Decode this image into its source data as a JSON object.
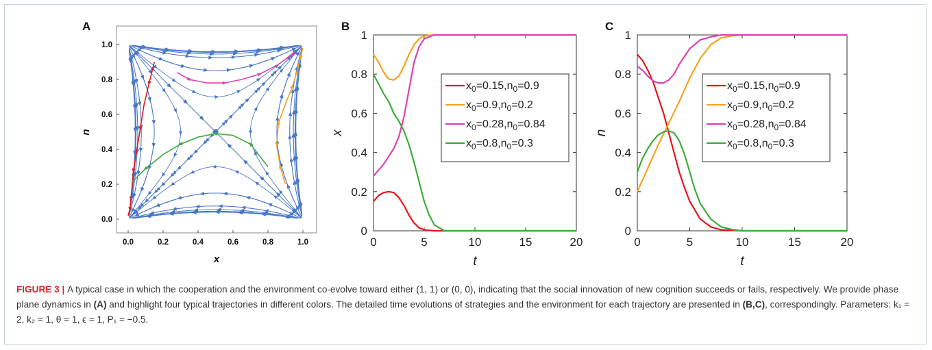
{
  "figure": {
    "label": "FIGURE 3",
    "separator": " | ",
    "caption_part1": "A typical case in which the cooperation and the environment co-evolve toward either (1, 1) or (0, 0), indicating that the social innovation of new cognition succeeds or fails, respectively. We provide phase plane dynamics in ",
    "ref_a": "(A)",
    "caption_part2": " and highlight four typical trajectories in different colors. The detailed time evolutions of strategies and the environment for each trajectory are presented in ",
    "ref_bc": "(B,C)",
    "caption_part3": ", correspondingly. Parameters: ",
    "parameters": "k₁ = 2, k₂ = 1, θ = 1, ϵ = 1, P₁ = −0.5."
  },
  "colors": {
    "red": "#e8141c",
    "orange": "#f7a21b",
    "magenta": "#dd3fb6",
    "green": "#3cab3a",
    "stream": "#4a78c8"
  },
  "chart_data": [
    {
      "panel": "A",
      "type": "streamplot",
      "xlabel": "x",
      "ylabel": "n",
      "xlim": [
        0,
        1
      ],
      "ylim": [
        0,
        1
      ],
      "xticks": [
        "0.0",
        "0.2",
        "0.4",
        "0.6",
        "0.8",
        "1.0"
      ],
      "yticks": [
        "0.0",
        "0.2",
        "0.4",
        "0.6",
        "0.8",
        "1.0"
      ],
      "highlighted_trajectories": [
        {
          "color": "red",
          "x": [
            0.15,
            0.12,
            0.09,
            0.07,
            0.05,
            0.03,
            0.02,
            0.01,
            0.0
          ],
          "n": [
            0.9,
            0.78,
            0.65,
            0.52,
            0.4,
            0.28,
            0.16,
            0.06,
            0.02
          ]
        },
        {
          "color": "orange",
          "x": [
            0.9,
            0.87,
            0.85,
            0.86,
            0.9,
            0.94,
            0.97,
            0.99,
            1.0
          ],
          "n": [
            0.2,
            0.3,
            0.42,
            0.55,
            0.66,
            0.76,
            0.86,
            0.94,
            0.98
          ]
        },
        {
          "color": "magenta",
          "x": [
            0.28,
            0.35,
            0.45,
            0.55,
            0.65,
            0.75,
            0.85,
            0.95
          ],
          "n": [
            0.84,
            0.8,
            0.78,
            0.78,
            0.8,
            0.83,
            0.88,
            0.95
          ]
        },
        {
          "color": "green",
          "x": [
            0.8,
            0.7,
            0.6,
            0.5,
            0.4,
            0.3,
            0.2,
            0.1,
            0.02
          ],
          "n": [
            0.3,
            0.43,
            0.48,
            0.49,
            0.47,
            0.43,
            0.37,
            0.29,
            0.21
          ]
        }
      ]
    },
    {
      "panel": "B",
      "type": "line",
      "xlabel": "t",
      "ylabel": "x",
      "xlim": [
        0,
        20
      ],
      "ylim": [
        0,
        1
      ],
      "xticks": [
        "0",
        "5",
        "10",
        "15",
        "20"
      ],
      "yticks": [
        "0",
        "0.2",
        "0.4",
        "0.6",
        "0.8",
        "1"
      ],
      "legend": [
        "x0=0.15,n0=0.9",
        "x0=0.9,n0=0.2",
        "x0=0.28,n0=0.84",
        "x0=0.8,n0=0.3"
      ],
      "series": [
        {
          "name": "x0=0.15,n0=0.9",
          "color": "red",
          "t": [
            0,
            0.5,
            1,
            1.5,
            2,
            2.5,
            3,
            3.5,
            4,
            4.5,
            5,
            6,
            7,
            10,
            20
          ],
          "y": [
            0.15,
            0.18,
            0.195,
            0.2,
            0.195,
            0.17,
            0.13,
            0.08,
            0.04,
            0.015,
            0.005,
            0.0,
            0.0,
            0.0,
            0.0
          ]
        },
        {
          "name": "x0=0.9,n0=0.2",
          "color": "orange",
          "t": [
            0,
            0.5,
            1,
            1.5,
            2,
            2.5,
            3,
            3.5,
            4,
            4.5,
            5,
            6,
            7,
            10,
            20
          ],
          "y": [
            0.9,
            0.86,
            0.81,
            0.775,
            0.77,
            0.79,
            0.84,
            0.9,
            0.95,
            0.98,
            0.995,
            1.0,
            1.0,
            1.0,
            1.0
          ]
        },
        {
          "name": "x0=0.28,n0=0.84",
          "color": "magenta",
          "t": [
            0,
            0.5,
            1,
            1.5,
            2,
            2.5,
            3,
            3.5,
            4,
            4.5,
            5,
            6,
            7,
            10,
            20
          ],
          "y": [
            0.28,
            0.31,
            0.34,
            0.38,
            0.42,
            0.48,
            0.58,
            0.72,
            0.86,
            0.94,
            0.98,
            1.0,
            1.0,
            1.0,
            1.0
          ]
        },
        {
          "name": "x0=0.8,n0=0.3",
          "color": "green",
          "t": [
            0,
            0.5,
            1,
            1.5,
            2,
            2.5,
            3,
            3.5,
            4,
            4.5,
            5,
            5.5,
            6,
            7,
            10,
            20
          ],
          "y": [
            0.8,
            0.75,
            0.7,
            0.66,
            0.6,
            0.56,
            0.51,
            0.44,
            0.35,
            0.25,
            0.15,
            0.08,
            0.03,
            0.0,
            0.0,
            0.0
          ]
        }
      ]
    },
    {
      "panel": "C",
      "type": "line",
      "xlabel": "t",
      "ylabel": "n",
      "xlim": [
        0,
        20
      ],
      "ylim": [
        0,
        1
      ],
      "xticks": [
        "0",
        "5",
        "10",
        "15",
        "20"
      ],
      "yticks": [
        "0",
        "0.2",
        "0.4",
        "0.6",
        "0.8",
        "1"
      ],
      "legend": [
        "x0=0.15,n0=0.9",
        "x0=0.9,n0=0.2",
        "x0=0.28,n0=0.84",
        "x0=0.8,n0=0.3"
      ],
      "series": [
        {
          "name": "x0=0.15,n0=0.9",
          "color": "red",
          "t": [
            0,
            0.5,
            1,
            1.5,
            2,
            2.5,
            3,
            3.5,
            4,
            4.5,
            5,
            6,
            7,
            8,
            10,
            20
          ],
          "y": [
            0.9,
            0.87,
            0.82,
            0.76,
            0.68,
            0.6,
            0.5,
            0.4,
            0.3,
            0.22,
            0.15,
            0.06,
            0.02,
            0.005,
            0.0,
            0.0
          ]
        },
        {
          "name": "x0=0.9,n0=0.2",
          "color": "orange",
          "t": [
            0,
            1,
            2,
            3,
            4,
            5,
            6,
            7,
            8,
            9,
            10,
            20
          ],
          "y": [
            0.2,
            0.32,
            0.44,
            0.55,
            0.66,
            0.78,
            0.88,
            0.95,
            0.985,
            0.995,
            1.0,
            1.0
          ]
        },
        {
          "name": "x0=0.28,n0=0.84",
          "color": "magenta",
          "t": [
            0,
            0.5,
            1,
            1.5,
            2,
            2.5,
            3,
            3.5,
            4,
            5,
            6,
            7,
            8,
            10,
            20
          ],
          "y": [
            0.84,
            0.82,
            0.79,
            0.765,
            0.755,
            0.755,
            0.77,
            0.8,
            0.85,
            0.93,
            0.975,
            0.99,
            1.0,
            1.0,
            1.0
          ]
        },
        {
          "name": "x0=0.8,n0=0.3",
          "color": "green",
          "t": [
            0,
            0.5,
            1,
            1.5,
            2,
            2.5,
            3,
            3.5,
            4,
            4.5,
            5,
            5.5,
            6,
            7,
            8,
            9,
            10,
            20
          ],
          "y": [
            0.3,
            0.37,
            0.42,
            0.46,
            0.49,
            0.505,
            0.51,
            0.5,
            0.46,
            0.39,
            0.3,
            0.21,
            0.14,
            0.06,
            0.02,
            0.007,
            0.0,
            0.0
          ]
        }
      ]
    }
  ],
  "panel_labels": [
    "A",
    "B",
    "C"
  ]
}
